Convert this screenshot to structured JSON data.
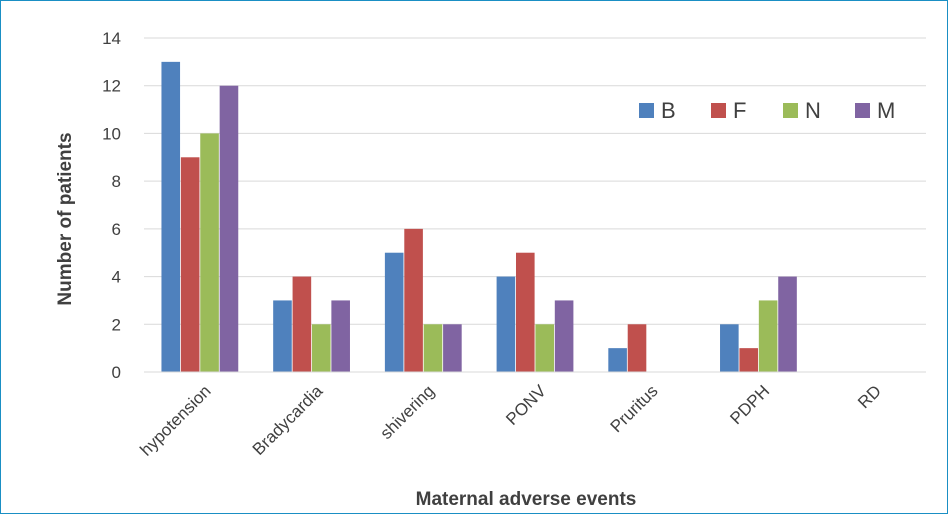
{
  "chart_data": {
    "type": "bar",
    "title": "",
    "xlabel": "Maternal adverse events",
    "ylabel": "Number of patients",
    "ylim": [
      0,
      14
    ],
    "yticks": [
      0,
      2,
      4,
      6,
      8,
      10,
      12,
      14
    ],
    "grid": true,
    "legend_position": "top-right",
    "categories": [
      "hypotension",
      "Bradycardia",
      "shivering",
      "PONV",
      "Pruritus",
      "PDPH",
      "RD"
    ],
    "series": [
      {
        "name": "B",
        "color": "#4f81bd",
        "values": [
          13,
          3,
          5,
          4,
          1,
          2,
          0
        ]
      },
      {
        "name": "F",
        "color": "#c0504d",
        "values": [
          9,
          4,
          6,
          5,
          2,
          1,
          0
        ]
      },
      {
        "name": "N",
        "color": "#9bbb59",
        "values": [
          10,
          2,
          2,
          2,
          0,
          3,
          0
        ]
      },
      {
        "name": "M",
        "color": "#8064a2",
        "values": [
          12,
          3,
          2,
          3,
          0,
          4,
          0
        ]
      }
    ]
  }
}
